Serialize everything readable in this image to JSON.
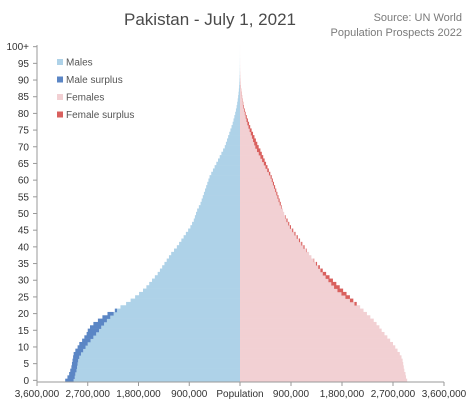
{
  "title": "Pakistan - July 1, 2021",
  "source_line1": "Source: UN World",
  "source_line2": "Population Prospects 2022",
  "chart_data": {
    "type": "population-pyramid",
    "title": "Pakistan - July 1, 2021",
    "xlabel": "Population",
    "xlim": [
      -3600000,
      3600000
    ],
    "x_ticks": [
      {
        "value": -3600000,
        "label": "3,600,000"
      },
      {
        "value": -2700000,
        "label": "2,700,000"
      },
      {
        "value": -1800000,
        "label": "1,800,000"
      },
      {
        "value": -900000,
        "label": "900,000"
      },
      {
        "value": 0,
        "label": "Population"
      },
      {
        "value": 900000,
        "label": "900,000"
      },
      {
        "value": 1800000,
        "label": "1,800,000"
      },
      {
        "value": 2700000,
        "label": "2,700,000"
      },
      {
        "value": 3600000,
        "label": "3,600,000"
      }
    ],
    "y_ticks": [
      "0",
      "5",
      "10",
      "15",
      "20",
      "25",
      "30",
      "35",
      "40",
      "45",
      "50",
      "55",
      "60",
      "65",
      "70",
      "75",
      "80",
      "85",
      "90",
      "95",
      "100+"
    ],
    "colors": {
      "males": "#aed2e8",
      "male_surplus": "#5b86c5",
      "females": "#f2d0d3",
      "female_surplus": "#d9605e"
    },
    "legend_position": "top-left",
    "legend": [
      "Males",
      "Male surplus",
      "Females",
      "Female surplus"
    ],
    "ages": [
      0,
      1,
      2,
      3,
      4,
      5,
      6,
      7,
      8,
      9,
      10,
      11,
      12,
      13,
      14,
      15,
      16,
      17,
      18,
      19,
      20,
      21,
      22,
      23,
      24,
      25,
      26,
      27,
      28,
      29,
      30,
      31,
      32,
      33,
      34,
      35,
      36,
      37,
      38,
      39,
      40,
      41,
      42,
      43,
      44,
      45,
      46,
      47,
      48,
      49,
      50,
      51,
      52,
      53,
      54,
      55,
      56,
      57,
      58,
      59,
      60,
      61,
      62,
      63,
      64,
      65,
      66,
      67,
      68,
      69,
      70,
      71,
      72,
      73,
      74,
      75,
      76,
      77,
      78,
      79,
      80,
      81,
      82,
      83,
      84,
      85,
      86,
      87,
      88,
      89,
      90,
      91,
      92,
      93,
      94,
      95,
      96,
      97,
      98,
      99,
      100
    ],
    "males": [
      3100000,
      3060000,
      3030000,
      3010000,
      2990000,
      2980000,
      2970000,
      2960000,
      2950000,
      2920000,
      2880000,
      2850000,
      2800000,
      2760000,
      2720000,
      2700000,
      2660000,
      2600000,
      2520000,
      2440000,
      2350000,
      2220000,
      2120000,
      2020000,
      1940000,
      1860000,
      1790000,
      1720000,
      1660000,
      1610000,
      1560000,
      1510000,
      1460000,
      1420000,
      1380000,
      1340000,
      1300000,
      1260000,
      1220000,
      1170000,
      1120000,
      1080000,
      1040000,
      1000000,
      960000,
      920000,
      880000,
      850000,
      820000,
      800000,
      780000,
      760000,
      730000,
      700000,
      680000,
      660000,
      640000,
      620000,
      600000,
      580000,
      560000,
      540000,
      510000,
      480000,
      450000,
      420000,
      390000,
      360000,
      330000,
      300000,
      270000,
      250000,
      230000,
      210000,
      190000,
      170000,
      150000,
      130000,
      115000,
      100000,
      85000,
      72000,
      60000,
      50000,
      41000,
      33000,
      26000,
      20000,
      15000,
      11000,
      8000,
      6000,
      4000,
      3000,
      2000,
      1500,
      1000,
      700,
      500,
      300,
      200
    ],
    "females": [
      2950000,
      2930000,
      2920000,
      2900000,
      2890000,
      2880000,
      2870000,
      2850000,
      2820000,
      2780000,
      2740000,
      2700000,
      2650000,
      2600000,
      2550000,
      2500000,
      2460000,
      2410000,
      2360000,
      2300000,
      2240000,
      2180000,
      2120000,
      2060000,
      2000000,
      1940000,
      1880000,
      1820000,
      1760000,
      1700000,
      1640000,
      1580000,
      1520000,
      1460000,
      1410000,
      1360000,
      1310000,
      1260000,
      1220000,
      1180000,
      1140000,
      1100000,
      1060000,
      1020000,
      980000,
      940000,
      900000,
      870000,
      840000,
      810000,
      780000,
      760000,
      740000,
      720000,
      700000,
      680000,
      660000,
      640000,
      620000,
      600000,
      580000,
      560000,
      535000,
      510000,
      485000,
      460000,
      435000,
      410000,
      385000,
      360000,
      330000,
      305000,
      280000,
      255000,
      230000,
      205000,
      180000,
      160000,
      140000,
      120000,
      100000,
      85000,
      70000,
      58000,
      47000,
      38000,
      30000,
      23000,
      17000,
      12000,
      9000,
      6500,
      4500,
      3000,
      2000,
      1500,
      1000,
      700,
      500,
      300,
      200
    ]
  }
}
